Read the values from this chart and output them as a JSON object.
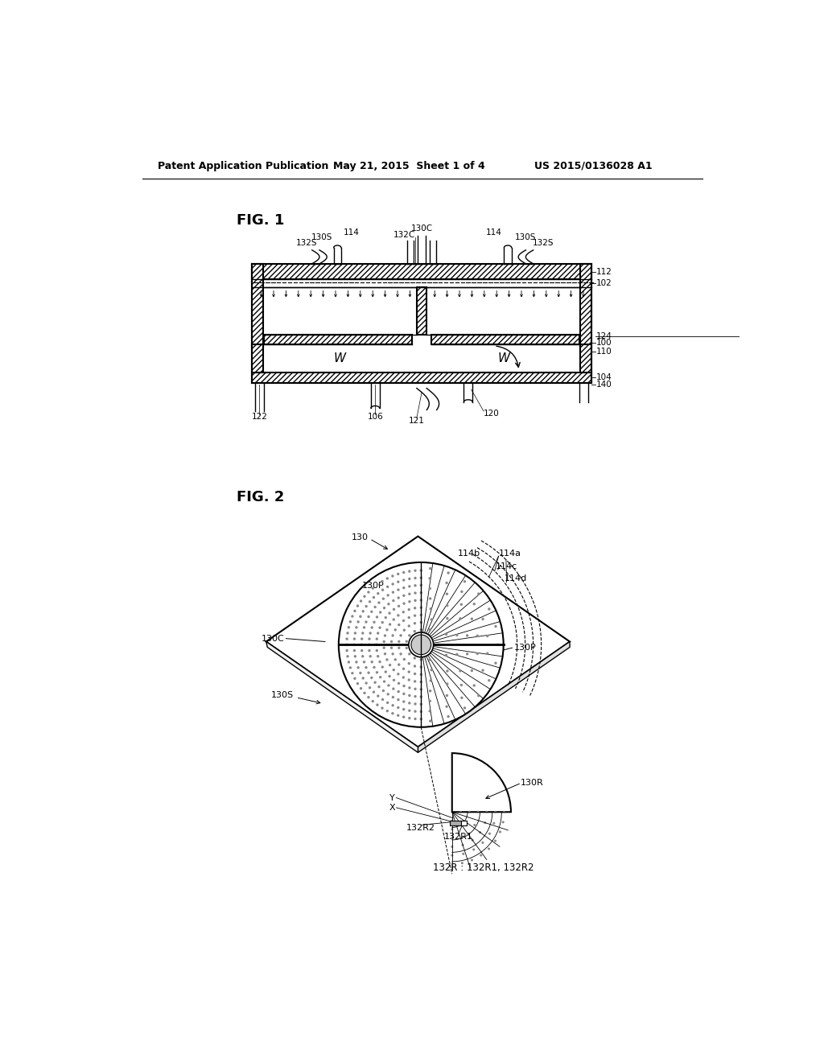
{
  "background_color": "#ffffff",
  "header_left": "Patent Application Publication",
  "header_center": "May 21, 2015  Sheet 1 of 4",
  "header_right": "US 2015/0136028 A1",
  "fig1_label": "FIG. 1",
  "fig2_label": "FIG. 2",
  "line_color": "#000000"
}
